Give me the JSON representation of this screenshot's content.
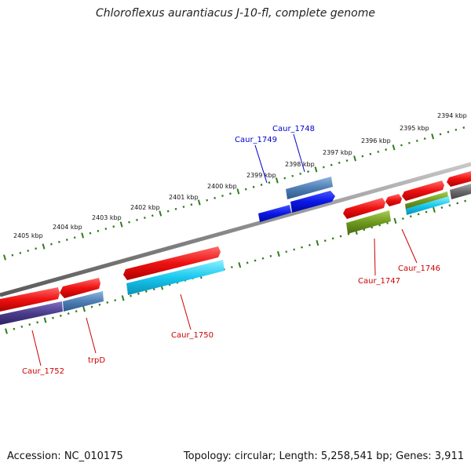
{
  "title": "Chloroflexus aurantiacus J-10-fl, complete genome",
  "footer": {
    "accession": "Accession: NC_010175",
    "topology": "Topology: circular; Length: 5,258,541 bp; Genes: 3,911"
  },
  "scale_labels": [
    {
      "label": "2405 kbp",
      "x": 2405
    },
    {
      "label": "2404 kbp",
      "x": 2404
    },
    {
      "label": "2403 kbp",
      "x": 2403
    },
    {
      "label": "2402 kbp",
      "x": 2402
    },
    {
      "label": "2401 kbp",
      "x": 2401
    },
    {
      "label": "2400 kbp",
      "x": 2400
    },
    {
      "label": "2399 kbp",
      "x": 2399
    },
    {
      "label": "2398 kbp",
      "x": 2398
    },
    {
      "label": "2397 kbp",
      "x": 2397
    },
    {
      "label": "2396 kbp",
      "x": 2396
    },
    {
      "label": "2395 kbp",
      "x": 2395
    },
    {
      "label": "2394 kbp",
      "x": 2394
    }
  ],
  "gene_labels": [
    {
      "name": "Caur_1748",
      "color": "#0000cc"
    },
    {
      "name": "Caur_1749",
      "color": "#0000cc"
    },
    {
      "name": "Caur_1747",
      "color": "#cc0000"
    },
    {
      "name": "Caur_1746",
      "color": "#cc0000"
    },
    {
      "name": "Caur_1750",
      "color": "#cc0000"
    },
    {
      "name": "trpD",
      "color": "#cc0000"
    },
    {
      "name": "Caur_1752",
      "color": "#cc0000"
    }
  ],
  "colors": {
    "backbone": "#8a8a8a",
    "ticks": "#2f7d1a",
    "forward_gene": "#ee1111",
    "cds_blue": "#0a18e6",
    "cds_steel": "#4f7fb5",
    "cds_olive": "#6f9a1f",
    "cds_cyan": "#18c8ee",
    "cds_purple": "#4b3c8c",
    "cds_grey": "#6a6a6a"
  }
}
